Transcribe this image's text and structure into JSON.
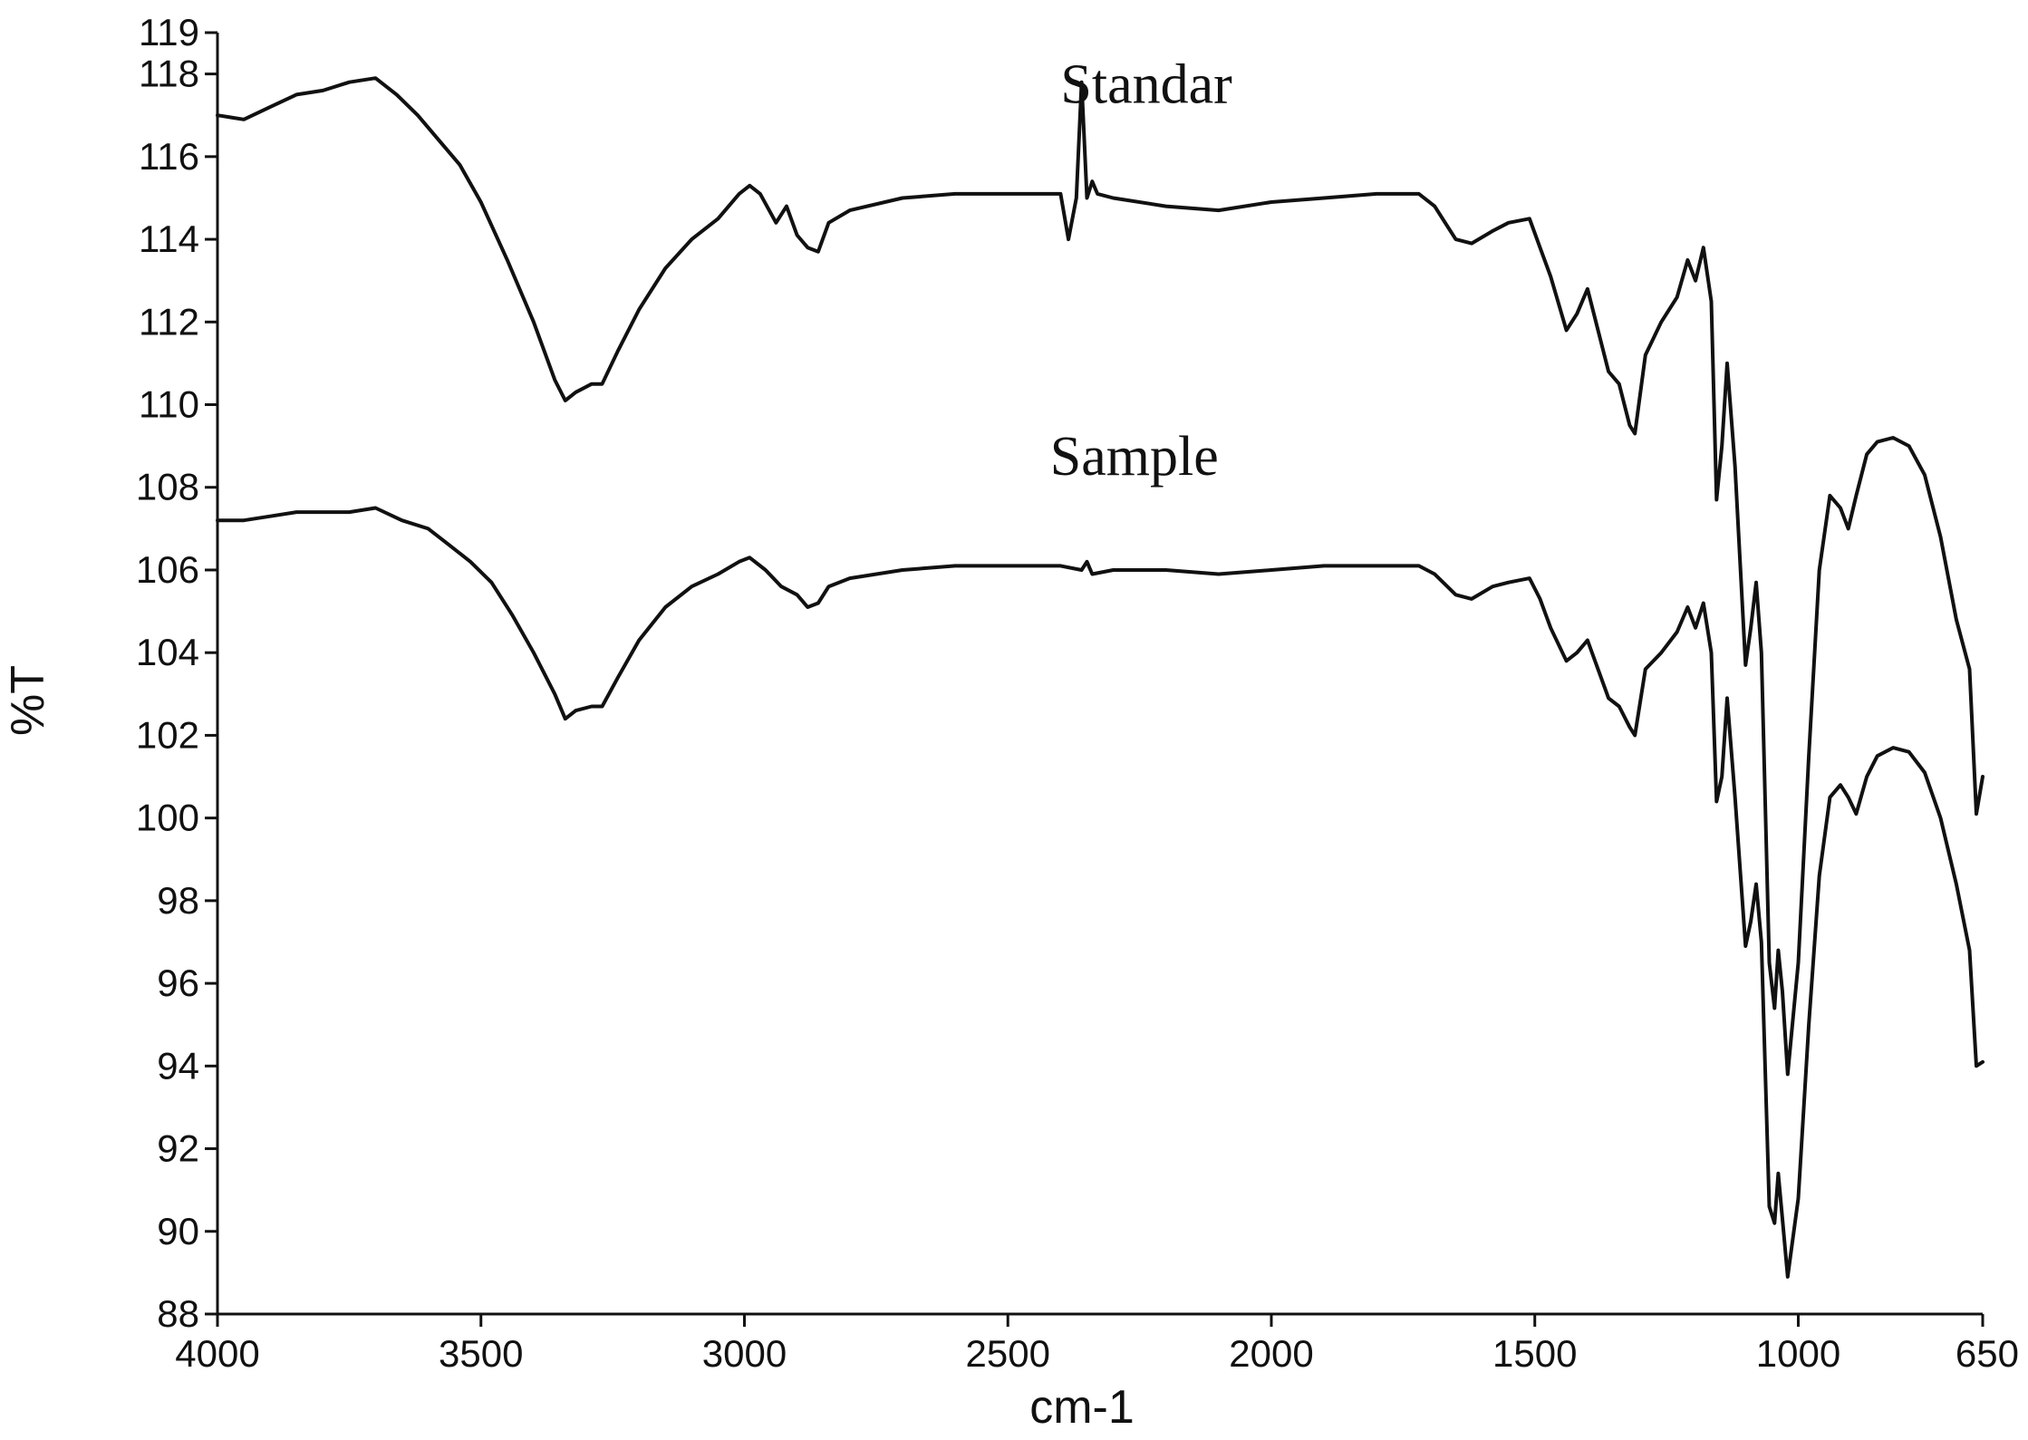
{
  "chart_data": {
    "type": "line",
    "title": "",
    "xlabel": "cm-1",
    "ylabel": "%T",
    "xlim": [
      4000,
      650
    ],
    "ylim": [
      88,
      119
    ],
    "x_reversed": true,
    "grid": false,
    "x_ticks": [
      4000,
      3500,
      3000,
      2500,
      2000,
      1500,
      1000,
      650
    ],
    "y_ticks": [
      88,
      90,
      92,
      94,
      96,
      98,
      100,
      102,
      104,
      106,
      108,
      110,
      112,
      114,
      116,
      118,
      119
    ],
    "line_color": "#111111",
    "series": [
      {
        "name": "Standar",
        "label_position": [
          2400,
          117.3
        ],
        "points": [
          [
            4000,
            117.0
          ],
          [
            3950,
            116.9
          ],
          [
            3900,
            117.2
          ],
          [
            3850,
            117.5
          ],
          [
            3800,
            117.6
          ],
          [
            3750,
            117.8
          ],
          [
            3700,
            117.9
          ],
          [
            3660,
            117.5
          ],
          [
            3620,
            117.0
          ],
          [
            3580,
            116.4
          ],
          [
            3540,
            115.8
          ],
          [
            3500,
            114.9
          ],
          [
            3450,
            113.5
          ],
          [
            3400,
            112.0
          ],
          [
            3360,
            110.6
          ],
          [
            3340,
            110.1
          ],
          [
            3320,
            110.3
          ],
          [
            3290,
            110.5
          ],
          [
            3270,
            110.5
          ],
          [
            3240,
            111.3
          ],
          [
            3200,
            112.3
          ],
          [
            3150,
            113.3
          ],
          [
            3100,
            114.0
          ],
          [
            3050,
            114.5
          ],
          [
            3010,
            115.1
          ],
          [
            2990,
            115.3
          ],
          [
            2970,
            115.1
          ],
          [
            2940,
            114.4
          ],
          [
            2920,
            114.8
          ],
          [
            2900,
            114.1
          ],
          [
            2880,
            113.8
          ],
          [
            2860,
            113.7
          ],
          [
            2840,
            114.4
          ],
          [
            2800,
            114.7
          ],
          [
            2700,
            115.0
          ],
          [
            2600,
            115.1
          ],
          [
            2500,
            115.1
          ],
          [
            2420,
            115.1
          ],
          [
            2400,
            115.1
          ],
          [
            2385,
            114.0
          ],
          [
            2370,
            115.0
          ],
          [
            2360,
            117.8
          ],
          [
            2350,
            115.0
          ],
          [
            2340,
            115.4
          ],
          [
            2330,
            115.1
          ],
          [
            2300,
            115.0
          ],
          [
            2200,
            114.8
          ],
          [
            2100,
            114.7
          ],
          [
            2000,
            114.9
          ],
          [
            1900,
            115.0
          ],
          [
            1800,
            115.1
          ],
          [
            1720,
            115.1
          ],
          [
            1690,
            114.8
          ],
          [
            1650,
            114.0
          ],
          [
            1620,
            113.9
          ],
          [
            1580,
            114.2
          ],
          [
            1550,
            114.4
          ],
          [
            1510,
            114.5
          ],
          [
            1490,
            113.8
          ],
          [
            1470,
            113.1
          ],
          [
            1440,
            111.8
          ],
          [
            1420,
            112.2
          ],
          [
            1400,
            112.8
          ],
          [
            1380,
            111.8
          ],
          [
            1360,
            110.8
          ],
          [
            1340,
            110.5
          ],
          [
            1320,
            109.5
          ],
          [
            1310,
            109.3
          ],
          [
            1290,
            111.2
          ],
          [
            1260,
            112.0
          ],
          [
            1230,
            112.6
          ],
          [
            1210,
            113.5
          ],
          [
            1195,
            113.0
          ],
          [
            1180,
            113.8
          ],
          [
            1165,
            112.5
          ],
          [
            1155,
            107.7
          ],
          [
            1145,
            109.0
          ],
          [
            1135,
            111.0
          ],
          [
            1120,
            108.5
          ],
          [
            1100,
            103.7
          ],
          [
            1090,
            104.6
          ],
          [
            1080,
            105.7
          ],
          [
            1070,
            104.0
          ],
          [
            1055,
            96.5
          ],
          [
            1045,
            95.4
          ],
          [
            1038,
            96.8
          ],
          [
            1030,
            95.8
          ],
          [
            1020,
            93.8
          ],
          [
            1000,
            96.5
          ],
          [
            980,
            101.5
          ],
          [
            960,
            106.0
          ],
          [
            940,
            107.8
          ],
          [
            920,
            107.5
          ],
          [
            905,
            107.0
          ],
          [
            890,
            107.8
          ],
          [
            870,
            108.8
          ],
          [
            850,
            109.1
          ],
          [
            820,
            109.2
          ],
          [
            790,
            109.0
          ],
          [
            760,
            108.3
          ],
          [
            730,
            106.8
          ],
          [
            700,
            104.8
          ],
          [
            675,
            103.6
          ],
          [
            662,
            100.1
          ],
          [
            650,
            101.0
          ]
        ]
      },
      {
        "name": "Sample",
        "label_position": [
          2420,
          108.3
        ],
        "points": [
          [
            4000,
            107.2
          ],
          [
            3950,
            107.2
          ],
          [
            3900,
            107.3
          ],
          [
            3850,
            107.4
          ],
          [
            3800,
            107.4
          ],
          [
            3750,
            107.4
          ],
          [
            3700,
            107.5
          ],
          [
            3650,
            107.2
          ],
          [
            3600,
            107.0
          ],
          [
            3560,
            106.6
          ],
          [
            3520,
            106.2
          ],
          [
            3480,
            105.7
          ],
          [
            3440,
            104.9
          ],
          [
            3400,
            104.0
          ],
          [
            3360,
            103.0
          ],
          [
            3340,
            102.4
          ],
          [
            3320,
            102.6
          ],
          [
            3290,
            102.7
          ],
          [
            3270,
            102.7
          ],
          [
            3240,
            103.4
          ],
          [
            3200,
            104.3
          ],
          [
            3150,
            105.1
          ],
          [
            3100,
            105.6
          ],
          [
            3050,
            105.9
          ],
          [
            3010,
            106.2
          ],
          [
            2990,
            106.3
          ],
          [
            2960,
            106.0
          ],
          [
            2930,
            105.6
          ],
          [
            2900,
            105.4
          ],
          [
            2880,
            105.1
          ],
          [
            2860,
            105.2
          ],
          [
            2840,
            105.6
          ],
          [
            2800,
            105.8
          ],
          [
            2700,
            106.0
          ],
          [
            2600,
            106.1
          ],
          [
            2500,
            106.1
          ],
          [
            2400,
            106.1
          ],
          [
            2360,
            106.0
          ],
          [
            2350,
            106.2
          ],
          [
            2340,
            105.9
          ],
          [
            2300,
            106.0
          ],
          [
            2200,
            106.0
          ],
          [
            2100,
            105.9
          ],
          [
            2000,
            106.0
          ],
          [
            1900,
            106.1
          ],
          [
            1800,
            106.1
          ],
          [
            1720,
            106.1
          ],
          [
            1690,
            105.9
          ],
          [
            1650,
            105.4
          ],
          [
            1620,
            105.3
          ],
          [
            1580,
            105.6
          ],
          [
            1550,
            105.7
          ],
          [
            1510,
            105.8
          ],
          [
            1490,
            105.3
          ],
          [
            1470,
            104.6
          ],
          [
            1440,
            103.8
          ],
          [
            1420,
            104.0
          ],
          [
            1400,
            104.3
          ],
          [
            1380,
            103.6
          ],
          [
            1360,
            102.9
          ],
          [
            1340,
            102.7
          ],
          [
            1320,
            102.2
          ],
          [
            1310,
            102.0
          ],
          [
            1290,
            103.6
          ],
          [
            1260,
            104.0
          ],
          [
            1230,
            104.5
          ],
          [
            1210,
            105.1
          ],
          [
            1195,
            104.6
          ],
          [
            1180,
            105.2
          ],
          [
            1165,
            104.0
          ],
          [
            1155,
            100.4
          ],
          [
            1145,
            101.0
          ],
          [
            1135,
            102.9
          ],
          [
            1120,
            100.5
          ],
          [
            1100,
            96.9
          ],
          [
            1090,
            97.5
          ],
          [
            1080,
            98.4
          ],
          [
            1070,
            97.0
          ],
          [
            1055,
            90.6
          ],
          [
            1045,
            90.2
          ],
          [
            1038,
            91.4
          ],
          [
            1030,
            90.3
          ],
          [
            1020,
            88.9
          ],
          [
            1000,
            90.8
          ],
          [
            980,
            95.0
          ],
          [
            960,
            98.6
          ],
          [
            940,
            100.5
          ],
          [
            920,
            100.8
          ],
          [
            905,
            100.5
          ],
          [
            890,
            100.1
          ],
          [
            870,
            101.0
          ],
          [
            850,
            101.5
          ],
          [
            820,
            101.7
          ],
          [
            790,
            101.6
          ],
          [
            760,
            101.1
          ],
          [
            730,
            100.0
          ],
          [
            700,
            98.4
          ],
          [
            675,
            96.8
          ],
          [
            662,
            94.0
          ],
          [
            650,
            94.1
          ]
        ]
      }
    ]
  }
}
